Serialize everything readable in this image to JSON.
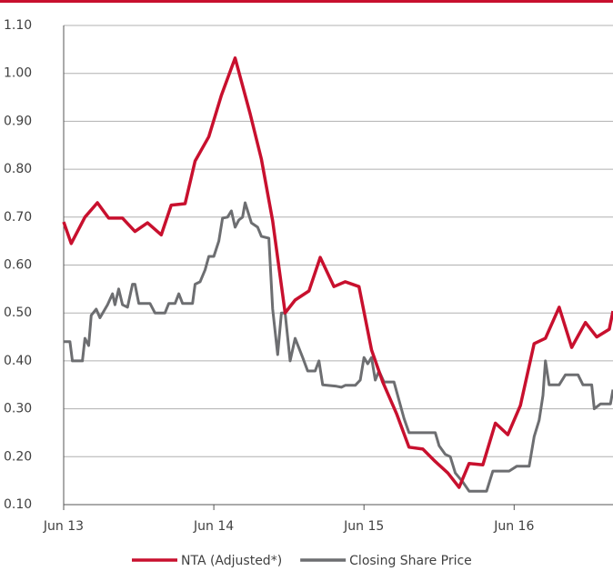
{
  "chart_data": {
    "type": "line",
    "xlim": [
      0,
      43.9
    ],
    "xticks": [
      {
        "value": 0,
        "label": "Jun 13"
      },
      {
        "value": 12,
        "label": "Jun 14"
      },
      {
        "value": 24,
        "label": "Jun 15"
      },
      {
        "value": 36,
        "label": "Jun 16"
      }
    ],
    "ylim": [
      0.1,
      1.1
    ],
    "yticks": [
      {
        "value": 0.1,
        "label": "0.10"
      },
      {
        "value": 0.2,
        "label": "0.20"
      },
      {
        "value": 0.3,
        "label": "0.30"
      },
      {
        "value": 0.4,
        "label": "0.40"
      },
      {
        "value": 0.5,
        "label": "0.50"
      },
      {
        "value": 0.6,
        "label": "0.60"
      },
      {
        "value": 0.7,
        "label": "0.70"
      },
      {
        "value": 0.8,
        "label": "0.80"
      },
      {
        "value": 0.9,
        "label": "0.90"
      },
      {
        "value": 1.0,
        "label": "1.00"
      },
      {
        "value": 1.1,
        "label": "1.10"
      }
    ],
    "grid": true,
    "legend": "bottom",
    "series": [
      {
        "name": "NTA (Adjusted*)",
        "color": "#c8102e",
        "x": [
          0,
          0.6,
          1.7,
          2.7,
          3.6,
          4.7,
          5.7,
          6.7,
          7.8,
          8.6,
          9.7,
          10.5,
          11.6,
          12.6,
          13.7,
          14.9,
          15.8,
          16.7,
          17.7,
          18.5,
          19.6,
          20.5,
          21.6,
          22.5,
          23.6,
          24.6,
          25.5,
          26.6,
          27.6,
          28.7,
          29.7,
          30.7,
          31.6,
          32.4,
          33.5,
          34.5,
          35.5,
          36.5,
          37.6,
          38.5,
          39.6,
          40.6,
          41.7,
          42.6,
          43.6,
          43.9
        ],
        "values": [
          0.69,
          0.645,
          0.7,
          0.73,
          0.698,
          0.698,
          0.67,
          0.688,
          0.663,
          0.725,
          0.728,
          0.817,
          0.868,
          0.954,
          1.032,
          0.916,
          0.821,
          0.692,
          0.5,
          0.527,
          0.546,
          0.616,
          0.555,
          0.565,
          0.555,
          0.423,
          0.356,
          0.29,
          0.22,
          0.216,
          0.19,
          0.166,
          0.136,
          0.186,
          0.183,
          0.27,
          0.246,
          0.307,
          0.436,
          0.447,
          0.512,
          0.428,
          0.48,
          0.45,
          0.466,
          0.504
        ]
      },
      {
        "name": "Closing Share Price",
        "color": "#6d6e71",
        "x": [
          0,
          0.5,
          0.7,
          1.5,
          1.7,
          2.0,
          2.2,
          2.6,
          2.9,
          3.5,
          3.9,
          4.1,
          4.4,
          4.7,
          5.1,
          5.5,
          5.7,
          6.0,
          6.9,
          7.3,
          8.1,
          8.4,
          8.9,
          9.2,
          9.5,
          10.3,
          10.5,
          10.9,
          11.3,
          11.6,
          12.0,
          12.4,
          12.7,
          13.1,
          13.4,
          13.7,
          14.0,
          14.3,
          14.5,
          15.0,
          15.5,
          15.8,
          16.4,
          16.7,
          17.1,
          17.4,
          17.7,
          18.1,
          18.5,
          19.1,
          19.5,
          20.1,
          20.4,
          20.7,
          21.8,
          22.2,
          22.5,
          23.3,
          23.7,
          24.0,
          24.3,
          24.6,
          24.9,
          25.2,
          25.6,
          26.4,
          26.8,
          27.2,
          27.6,
          29.7,
          30.0,
          30.5,
          30.9,
          31.3,
          31.9,
          32.4,
          33.8,
          34.3,
          35.6,
          36.2,
          37.2,
          37.6,
          38.0,
          38.3,
          38.5,
          38.8,
          39.6,
          40.1,
          41.1,
          41.5,
          42.2,
          42.4,
          42.9,
          43.7,
          43.9
        ],
        "values": [
          0.44,
          0.44,
          0.4,
          0.4,
          0.447,
          0.432,
          0.495,
          0.508,
          0.49,
          0.517,
          0.54,
          0.517,
          0.55,
          0.517,
          0.512,
          0.56,
          0.56,
          0.52,
          0.52,
          0.5,
          0.5,
          0.52,
          0.52,
          0.54,
          0.52,
          0.52,
          0.56,
          0.565,
          0.59,
          0.618,
          0.618,
          0.65,
          0.698,
          0.7,
          0.713,
          0.679,
          0.694,
          0.7,
          0.73,
          0.688,
          0.679,
          0.66,
          0.656,
          0.508,
          0.413,
          0.5,
          0.5,
          0.4,
          0.447,
          0.407,
          0.379,
          0.379,
          0.4,
          0.35,
          0.347,
          0.345,
          0.349,
          0.349,
          0.36,
          0.407,
          0.394,
          0.407,
          0.36,
          0.379,
          0.356,
          0.356,
          0.318,
          0.28,
          0.25,
          0.25,
          0.223,
          0.205,
          0.2,
          0.166,
          0.147,
          0.128,
          0.128,
          0.17,
          0.17,
          0.18,
          0.18,
          0.242,
          0.276,
          0.328,
          0.4,
          0.35,
          0.35,
          0.371,
          0.371,
          0.35,
          0.35,
          0.3,
          0.31,
          0.31,
          0.34
        ]
      }
    ]
  }
}
